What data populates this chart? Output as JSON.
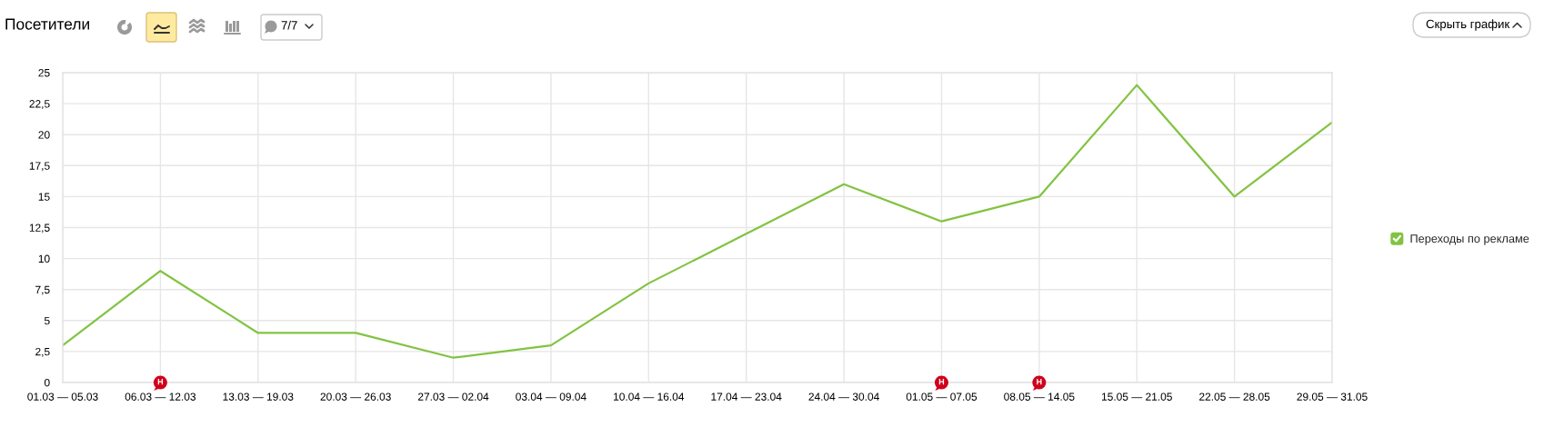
{
  "chart_data": {
    "type": "line",
    "title": "Посетители",
    "categories": [
      "01.03 — 05.03",
      "06.03 — 12.03",
      "13.03 — 19.03",
      "20.03 — 26.03",
      "27.03 — 02.04",
      "03.04 — 09.04",
      "10.04 — 16.04",
      "17.04 — 23.04",
      "24.04 — 30.04",
      "01.05 — 07.05",
      "08.05 — 14.05",
      "15.05 — 21.05",
      "22.05 — 28.05",
      "29.05 — 31.05"
    ],
    "series": [
      {
        "name": "Переходы по рекламе",
        "color": "#82c341",
        "values": [
          3,
          9,
          4,
          4,
          2,
          3,
          8,
          12,
          16,
          13,
          15,
          24,
          15,
          21
        ]
      }
    ],
    "ylim": [
      0,
      25
    ],
    "yticks": [
      0,
      {
        "value": 2.5,
        "label": "2,5"
      },
      5,
      {
        "value": 7.5,
        "label": "7,5"
      },
      10,
      {
        "value": 12.5,
        "label": "12,5"
      },
      15,
      {
        "value": 17.5,
        "label": "17,5"
      },
      20,
      {
        "value": 22.5,
        "label": "22,5"
      },
      25
    ],
    "grid": true,
    "legend": "right",
    "annotations": [
      {
        "text": "Н",
        "x": "06.03 — 12.03",
        "y": 0
      },
      {
        "text": "Н",
        "x": "01.05 — 07.05",
        "y": 0
      },
      {
        "text": "Н",
        "x": "08.05 — 14.05",
        "y": 0
      },
      "7/7",
      "Скрыть график"
    ]
  }
}
